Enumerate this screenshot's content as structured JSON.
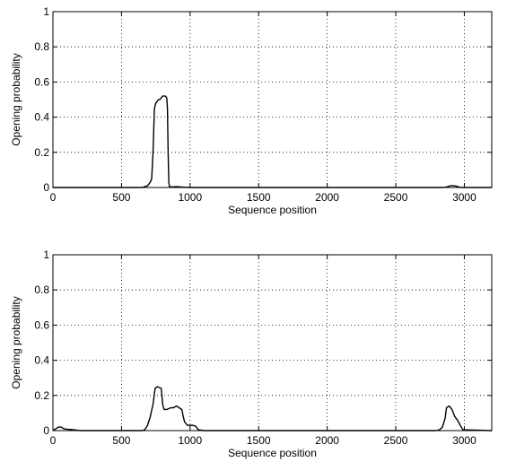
{
  "chart_data": [
    {
      "type": "line",
      "xlabel": "Sequence position",
      "ylabel": "Opening probability",
      "xlim": [
        0,
        3200
      ],
      "ylim": [
        0,
        1
      ],
      "xticks": [
        0,
        500,
        1000,
        1500,
        2000,
        2500,
        3000
      ],
      "yticks": [
        0,
        0.2,
        0.4,
        0.6,
        0.8,
        1
      ],
      "xtick_labels": [
        "0",
        "500",
        "1000",
        "1500",
        "2000",
        "2500",
        "3000"
      ],
      "ytick_labels": [
        "0",
        "0.2",
        "0.4",
        "0.6",
        "0.8",
        "1"
      ],
      "grid": true,
      "series": [
        {
          "color": "#000000",
          "x": [
            0,
            650,
            690,
            700,
            710,
            720,
            730,
            740,
            750,
            760,
            770,
            780,
            790,
            800,
            810,
            820,
            830,
            835,
            840,
            845,
            850,
            870,
            900,
            950,
            1000,
            2850,
            2880,
            2900,
            2920,
            2940,
            2960,
            2980,
            3200
          ],
          "y": [
            0,
            0,
            0.01,
            0.02,
            0.03,
            0.05,
            0.2,
            0.45,
            0.48,
            0.49,
            0.5,
            0.5,
            0.51,
            0.52,
            0.52,
            0.52,
            0.51,
            0.45,
            0.2,
            0.03,
            0.005,
            0.003,
            0.005,
            0.002,
            0,
            0,
            0.005,
            0.01,
            0.01,
            0.008,
            0.003,
            0,
            0
          ]
        }
      ]
    },
    {
      "type": "line",
      "xlabel": "Sequence position",
      "ylabel": "Opening probability",
      "xlim": [
        0,
        3200
      ],
      "ylim": [
        0,
        1
      ],
      "xticks": [
        0,
        500,
        1000,
        1500,
        2000,
        2500,
        3000
      ],
      "yticks": [
        0,
        0.2,
        0.4,
        0.6,
        0.8,
        1
      ],
      "xtick_labels": [
        "0",
        "500",
        "1000",
        "1500",
        "2000",
        "2500",
        "3000"
      ],
      "ytick_labels": [
        "0",
        "0.2",
        "0.4",
        "0.6",
        "0.8",
        "1"
      ],
      "grid": true,
      "series": [
        {
          "color": "#000000",
          "x": [
            0,
            10,
            20,
            40,
            60,
            80,
            100,
            150,
            200,
            650,
            670,
            690,
            710,
            730,
            745,
            760,
            790,
            800,
            810,
            830,
            860,
            880,
            900,
            920,
            940,
            950,
            960,
            980,
            1000,
            1020,
            1040,
            1060,
            1100,
            2790,
            2820,
            2840,
            2860,
            2870,
            2890,
            2910,
            2920,
            2930,
            2950,
            2970,
            2990,
            3200
          ],
          "y": [
            0,
            0.005,
            0.01,
            0.02,
            0.02,
            0.01,
            0.008,
            0.005,
            0,
            0,
            0.005,
            0.03,
            0.08,
            0.15,
            0.24,
            0.25,
            0.24,
            0.15,
            0.12,
            0.12,
            0.13,
            0.13,
            0.14,
            0.13,
            0.12,
            0.08,
            0.05,
            0.03,
            0.03,
            0.03,
            0.025,
            0.005,
            0,
            0,
            0.005,
            0.02,
            0.07,
            0.13,
            0.14,
            0.12,
            0.1,
            0.08,
            0.06,
            0.03,
            0.005,
            0
          ]
        }
      ]
    }
  ]
}
